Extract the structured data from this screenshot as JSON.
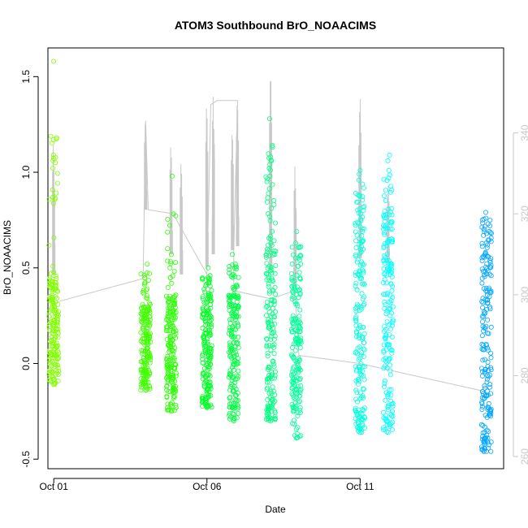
{
  "chart_data": {
    "type": "scatter",
    "title": "ATOM3 Southbound BrO_NOAACIMS",
    "xlabel": "Date",
    "ylabel": "BrO_NOAACIMS",
    "x_axis": {
      "type": "date",
      "range": [
        "2017-09-30T19:25",
        "2017-10-15T16:25"
      ],
      "ticks": [
        {
          "value": "2017-10-01",
          "label": "Oct 01"
        },
        {
          "value": "2017-10-06",
          "label": "Oct 06"
        },
        {
          "value": "2017-10-11",
          "label": "Oct 11"
        }
      ]
    },
    "y_axis": {
      "range": [
        -0.55,
        1.65
      ],
      "ticks": [
        -0.5,
        0.0,
        0.5,
        1.0,
        1.5
      ],
      "tick_labels": [
        "-0.5",
        "0.0",
        "0.5",
        "1.0",
        "1.5"
      ]
    },
    "y2_axis": {
      "range": [
        257,
        361
      ],
      "ticks": [
        260,
        280,
        300,
        320,
        340
      ],
      "tick_labels": [
        "260",
        "280",
        "300",
        "320",
        "340"
      ],
      "color": "#c8c8c8"
    },
    "grid": false,
    "legend": "none",
    "series": [
      {
        "x": "2017-10-01",
        "color": "#80ff00",
        "min": -0.11,
        "max": 1.58,
        "core_low": -0.02,
        "core_high": 0.48,
        "peaks": [
          {
            "y": 1.58
          },
          {
            "y": 1.09
          },
          {
            "y": 1.06
          },
          {
            "y": 0.87
          },
          {
            "y": 0.86
          }
        ]
      },
      {
        "x": "2017-10-04",
        "color": "#40ff00",
        "min": -0.14,
        "max": 0.52,
        "core_low": -0.08,
        "core_high": 0.32,
        "peaks": [
          {
            "y": 0.52
          },
          {
            "y": 0.39
          }
        ]
      },
      {
        "x": "2017-10-04T20:00",
        "color": "#2aff00",
        "min": -0.25,
        "max": 0.98,
        "core_low": -0.15,
        "core_high": 0.36,
        "peaks": [
          {
            "y": 0.98
          },
          {
            "y": 0.57
          },
          {
            "y": 0.5
          }
        ]
      },
      {
        "x": "2017-10-06",
        "color": "#00ff22",
        "min": -0.23,
        "max": 0.5,
        "core_low": -0.18,
        "core_high": 0.35,
        "peaks": [
          {
            "y": 0.5
          },
          {
            "y": 0.45
          }
        ]
      },
      {
        "x": "2017-10-06T21:00",
        "color": "#00ff40",
        "min": -0.3,
        "max": 0.57,
        "core_low": -0.22,
        "core_high": 0.37,
        "peaks": [
          {
            "y": 0.57
          },
          {
            "y": 0.5
          }
        ]
      },
      {
        "x": "2017-10-08T02:00",
        "color": "#00ff80",
        "min": -0.3,
        "max": 1.28,
        "core_low": -0.22,
        "core_high": 0.69,
        "peaks": [
          {
            "y": 1.28
          },
          {
            "y": 1.06
          },
          {
            "y": 1.02
          },
          {
            "y": 0.98
          }
        ]
      },
      {
        "x": "2017-10-08T22:00",
        "color": "#00ff99",
        "min": -0.39,
        "max": 0.69,
        "core_low": -0.25,
        "core_high": 0.45,
        "peaks": [
          {
            "y": 0.69
          },
          {
            "y": 0.63
          }
        ]
      },
      {
        "x": "2017-10-11",
        "color": "#00ffdd",
        "min": -0.36,
        "max": 1.01,
        "core_low": -0.28,
        "core_high": 0.79,
        "peaks": [
          {
            "y": 1.01
          },
          {
            "y": 0.99
          }
        ]
      },
      {
        "x": "2017-10-11T22:00",
        "color": "#00ffff",
        "min": -0.36,
        "max": 1.09,
        "core_low": -0.28,
        "core_high": 0.78,
        "peaks": [
          {
            "y": 1.09
          },
          {
            "y": 1.06
          },
          {
            "y": 0.97
          }
        ]
      },
      {
        "x": "2017-10-15T03:00",
        "color": "#00a6ff",
        "min": -0.46,
        "max": 0.79,
        "core_low": -0.4,
        "core_high": 0.64,
        "peaks": [
          {
            "y": 0.79
          },
          {
            "y": 0.76
          },
          {
            "y": 0.73
          }
        ]
      }
    ],
    "secondary_series": {
      "color": "#c8c8c8",
      "points": [
        {
          "x": "2017-10-01",
          "y": 298
        },
        {
          "x": "2017-10-03T22:00",
          "y": 304
        },
        {
          "x": "2017-10-04T00:00",
          "y": 343
        },
        {
          "x": "2017-10-04T02:00",
          "y": 321
        },
        {
          "x": "2017-10-04T22:00",
          "y": 320
        },
        {
          "x": "2017-10-05T01:00",
          "y": 318
        },
        {
          "x": "2017-10-06",
          "y": 305
        },
        {
          "x": "2017-10-06T03:00",
          "y": 347
        },
        {
          "x": "2017-10-06T08:00",
          "y": 348
        },
        {
          "x": "2017-10-07T00:00",
          "y": 348
        },
        {
          "x": "2017-10-06T21:00",
          "y": 311
        },
        {
          "x": "2017-10-06T21:00",
          "y": 301
        },
        {
          "x": "2017-10-08T02:00",
          "y": 299
        },
        {
          "x": "2017-10-08T21:00",
          "y": 301
        },
        {
          "x": "2017-10-09T00:00",
          "y": 285
        },
        {
          "x": "2017-10-11",
          "y": 283
        },
        {
          "x": "2017-10-15T03:00",
          "y": 276
        }
      ],
      "spikes": [
        {
          "x": "2017-10-01",
          "low": 305,
          "high": 337
        },
        {
          "x": "2017-10-04T00:00",
          "low": 321,
          "high": 343
        },
        {
          "x": "2017-10-04T20:00",
          "low": 310,
          "high": 338
        },
        {
          "x": "2017-10-05T04:00",
          "low": 305,
          "high": 334
        },
        {
          "x": "2017-10-06",
          "low": 307,
          "high": 349
        },
        {
          "x": "2017-10-06T05:00",
          "low": 310,
          "high": 350
        },
        {
          "x": "2017-10-06T20:00",
          "low": 311,
          "high": 342
        },
        {
          "x": "2017-10-07T00:00",
          "low": 312,
          "high": 350
        },
        {
          "x": "2017-10-08T02:00",
          "low": 306,
          "high": 358
        },
        {
          "x": "2017-10-08T21:00",
          "low": 302,
          "high": 332
        },
        {
          "x": "2017-10-11",
          "low": 309,
          "high": 351
        },
        {
          "x": "2017-10-11T22:00",
          "low": 308,
          "high": 328
        }
      ]
    }
  }
}
